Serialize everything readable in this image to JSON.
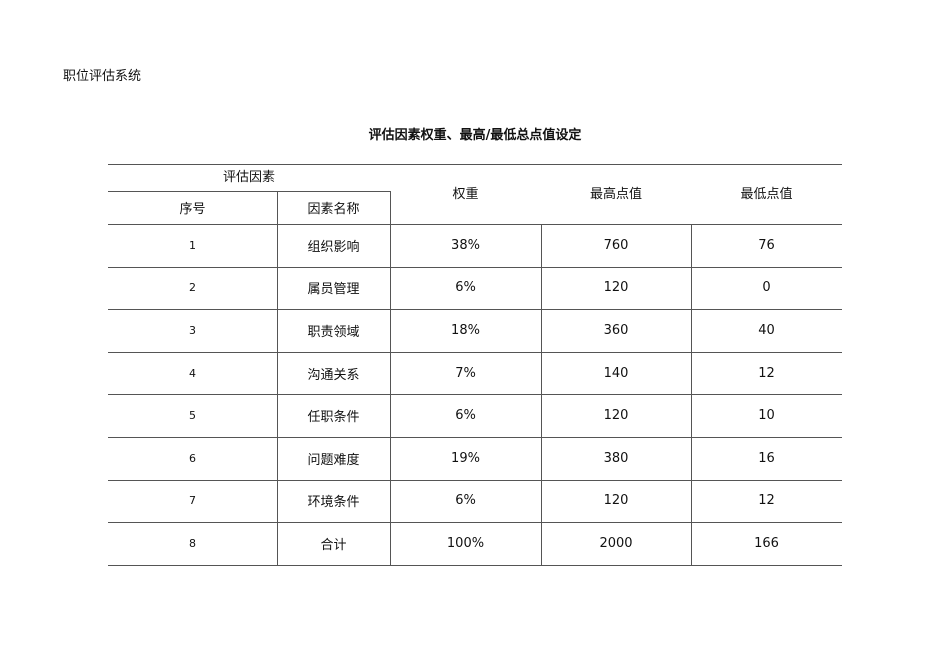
{
  "doc_header": "职位评估系统",
  "title": "评估因素权重、最高/最低总点值设定",
  "table": {
    "group_header": "评估因素",
    "columns": [
      "序号",
      "因素名称",
      "权重",
      "最高点值",
      "最低点值"
    ],
    "rows": [
      [
        "1",
        "组织影响",
        "38%",
        "760",
        "76"
      ],
      [
        "2",
        "属员管理",
        "6%",
        "120",
        "0"
      ],
      [
        "3",
        "职责领域",
        "18%",
        "360",
        "40"
      ],
      [
        "4",
        "沟通关系",
        "7%",
        "140",
        "12"
      ],
      [
        "5",
        "任职条件",
        "6%",
        "120",
        "10"
      ],
      [
        "6",
        "问题难度",
        "19%",
        "380",
        "16"
      ],
      [
        "7",
        "环境条件",
        "6%",
        "120",
        "12"
      ],
      [
        "8",
        "合计",
        "100%",
        "2000",
        "166"
      ]
    ]
  }
}
